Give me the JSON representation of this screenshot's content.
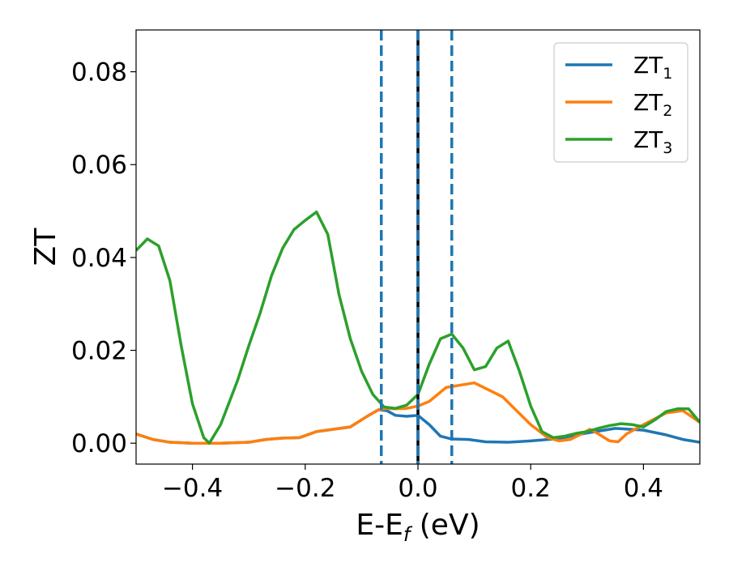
{
  "chart_data": {
    "type": "line",
    "title": "",
    "xlabel": {
      "main": "E-E",
      "sub": "f",
      "unit": " (eV)"
    },
    "ylabel": "ZT",
    "xlim": [
      -0.5,
      0.5
    ],
    "ylim": [
      -0.0045,
      0.089
    ],
    "xticks": [
      -0.4,
      -0.2,
      0.0,
      0.2,
      0.4
    ],
    "xtick_labels": [
      "−0.4",
      "−0.2",
      "0.0",
      "0.2",
      "0.4"
    ],
    "yticks": [
      0.0,
      0.02,
      0.04,
      0.06,
      0.08
    ],
    "ytick_labels": [
      "0.00",
      "0.02",
      "0.04",
      "0.06",
      "0.08"
    ],
    "grid": false,
    "legend_position": "top-right",
    "vertical_lines": [
      {
        "x": -0.065,
        "style": "dashed",
        "color": "#1f77b4"
      },
      {
        "x": 0.0,
        "style": "solid",
        "color": "#000000"
      },
      {
        "x": 0.0,
        "style": "dashed",
        "color": "#1f77b4"
      },
      {
        "x": 0.06,
        "style": "dashed",
        "color": "#1f77b4"
      }
    ],
    "series": [
      {
        "name": "ZT",
        "name_sub": "1",
        "color": "#1f77b4",
        "x": [
          -0.5,
          -0.47,
          -0.44,
          -0.4,
          -0.35,
          -0.3,
          -0.27,
          -0.24,
          -0.21,
          -0.18,
          -0.15,
          -0.12,
          -0.09,
          -0.07,
          -0.055,
          -0.04,
          -0.02,
          0.0,
          0.02,
          0.04,
          0.06,
          0.09,
          0.12,
          0.16,
          0.2,
          0.25,
          0.3,
          0.35,
          0.4,
          0.44,
          0.47,
          0.5
        ],
        "y": [
          0.002,
          0.0008,
          0.0002,
          0.0,
          0.0,
          0.0002,
          0.0008,
          0.0011,
          0.0012,
          0.0025,
          0.003,
          0.0035,
          0.0058,
          0.0072,
          0.007,
          0.006,
          0.0058,
          0.006,
          0.004,
          0.0015,
          0.0009,
          0.0008,
          0.0003,
          0.0002,
          0.0005,
          0.001,
          0.0022,
          0.0032,
          0.0028,
          0.0018,
          0.0008,
          0.0002
        ]
      },
      {
        "name": "ZT",
        "name_sub": "2",
        "color": "#ff7f0e",
        "x": [
          -0.5,
          -0.47,
          -0.44,
          -0.4,
          -0.35,
          -0.3,
          -0.27,
          -0.24,
          -0.21,
          -0.18,
          -0.15,
          -0.12,
          -0.09,
          -0.07,
          -0.055,
          -0.04,
          -0.02,
          0.0,
          0.02,
          0.05,
          0.1,
          0.15,
          0.2,
          0.23,
          0.25,
          0.27,
          0.29,
          0.305,
          0.32,
          0.34,
          0.355,
          0.37,
          0.4,
          0.44,
          0.47,
          0.5
        ],
        "y": [
          0.002,
          0.0008,
          0.0002,
          0.0,
          0.0,
          0.0002,
          0.0008,
          0.0011,
          0.0012,
          0.0025,
          0.003,
          0.0035,
          0.0058,
          0.0072,
          0.0075,
          0.0074,
          0.0075,
          0.008,
          0.009,
          0.012,
          0.013,
          0.01,
          0.004,
          0.0012,
          0.0005,
          0.0008,
          0.002,
          0.003,
          0.002,
          0.0005,
          0.0003,
          0.002,
          0.004,
          0.0065,
          0.007,
          0.0045
        ]
      },
      {
        "name": "ZT",
        "name_sub": "3",
        "color": "#2ca02c",
        "x": [
          -0.5,
          -0.48,
          -0.46,
          -0.44,
          -0.42,
          -0.4,
          -0.38,
          -0.37,
          -0.35,
          -0.32,
          -0.3,
          -0.28,
          -0.26,
          -0.24,
          -0.22,
          -0.2,
          -0.18,
          -0.16,
          -0.14,
          -0.12,
          -0.1,
          -0.08,
          -0.06,
          -0.04,
          -0.02,
          0.0,
          0.02,
          0.04,
          0.06,
          0.08,
          0.1,
          0.12,
          0.14,
          0.16,
          0.18,
          0.2,
          0.22,
          0.24,
          0.26,
          0.28,
          0.3,
          0.32,
          0.34,
          0.36,
          0.38,
          0.4,
          0.42,
          0.44,
          0.46,
          0.48,
          0.5
        ],
        "y": [
          0.0415,
          0.044,
          0.0425,
          0.035,
          0.021,
          0.0085,
          0.0012,
          0.0,
          0.004,
          0.0135,
          0.021,
          0.028,
          0.036,
          0.042,
          0.046,
          0.048,
          0.0498,
          0.045,
          0.032,
          0.0225,
          0.0155,
          0.0105,
          0.0078,
          0.0075,
          0.0082,
          0.0105,
          0.017,
          0.0225,
          0.0235,
          0.0205,
          0.0158,
          0.0165,
          0.0205,
          0.022,
          0.0155,
          0.008,
          0.0025,
          0.0012,
          0.0015,
          0.0021,
          0.0025,
          0.0032,
          0.0038,
          0.0042,
          0.004,
          0.0035,
          0.005,
          0.0068,
          0.0074,
          0.0074,
          0.0045
        ]
      }
    ]
  }
}
